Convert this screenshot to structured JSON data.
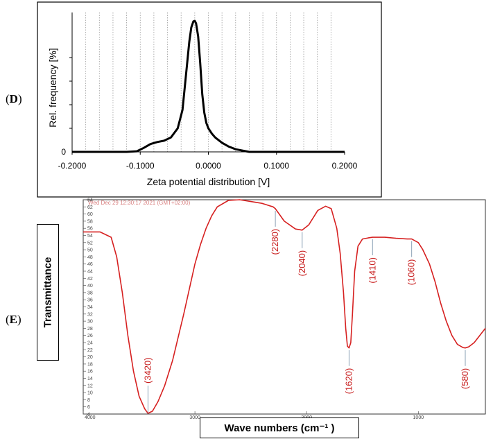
{
  "panels": {
    "d_label": "D",
    "e_label": "E"
  },
  "chart_data": [
    {
      "type": "line",
      "title": "",
      "xlabel": "Zeta potential distribution [V]",
      "ylabel": "Rel. frequency [%]",
      "xlim": [
        -0.2,
        0.2
      ],
      "ylim": [
        0,
        100
      ],
      "x_ticks": [
        "-0.2000",
        "-0.1000",
        "0.0000",
        "0.1000",
        "0.2000"
      ],
      "y_ticks": [
        "0"
      ],
      "grid": "vertical dashed",
      "series": [
        {
          "x": [
            -0.2,
            -0.15,
            -0.12,
            -0.105,
            -0.095,
            -0.085,
            -0.075,
            -0.065,
            -0.055,
            -0.045,
            -0.038,
            -0.033,
            -0.028,
            -0.025,
            -0.022,
            -0.02,
            -0.018,
            -0.015,
            -0.012,
            -0.009,
            -0.006,
            -0.003,
            0.0,
            0.005,
            0.01,
            0.02,
            0.03,
            0.04,
            0.05,
            0.06,
            0.1,
            0.15,
            0.2
          ],
          "y": [
            0,
            0,
            0,
            0.5,
            3,
            6,
            7.5,
            8.5,
            11,
            18,
            32,
            58,
            84,
            95,
            99.5,
            100,
            98,
            88,
            68,
            44,
            30,
            22,
            18,
            14,
            11,
            7,
            4,
            2,
            1,
            0,
            0,
            0,
            0
          ]
        }
      ]
    },
    {
      "type": "line",
      "title": "",
      "header_text": "Wed Dec 29 12:30:17 2021 (GMT+02:00)",
      "xlabel": "Wave numbers (cm⁻¹ )",
      "ylabel": "Transmittance",
      "xlim": [
        4000,
        400
      ],
      "ylim": [
        4,
        64
      ],
      "x_ticks": [
        "4000",
        "3000",
        "2000",
        "1000"
      ],
      "y_ticks": [
        "4",
        "6",
        "8",
        "10",
        "12",
        "14",
        "16",
        "18",
        "20",
        "22",
        "24",
        "26",
        "28",
        "30",
        "32",
        "34",
        "36",
        "38",
        "40",
        "42",
        "44",
        "46",
        "48",
        "50",
        "52",
        "54",
        "56",
        "58",
        "60",
        "62",
        "64"
      ],
      "annotations": [
        {
          "label": "(3420)",
          "x": 3420,
          "y": 4.2
        },
        {
          "label": "(2280)",
          "x": 2280,
          "y": 61.5
        },
        {
          "label": "(2040)",
          "x": 2040,
          "y": 55.5
        },
        {
          "label": "(1620)",
          "x": 1620,
          "y": 22.5
        },
        {
          "label": "(1410)",
          "x": 1410,
          "y": 53.5
        },
        {
          "label": "(1060)",
          "x": 1060,
          "y": 53.0
        },
        {
          "label": "(580)",
          "x": 580,
          "y": 22.5
        }
      ],
      "series": [
        {
          "x": [
            4000,
            3850,
            3750,
            3700,
            3650,
            3600,
            3550,
            3500,
            3450,
            3420,
            3380,
            3330,
            3270,
            3200,
            3100,
            3000,
            2950,
            2900,
            2850,
            2800,
            2700,
            2600,
            2500,
            2400,
            2300,
            2280,
            2200,
            2100,
            2040,
            1980,
            1900,
            1830,
            1780,
            1730,
            1700,
            1670,
            1650,
            1635,
            1620,
            1605,
            1590,
            1570,
            1540,
            1500,
            1450,
            1410,
            1300,
            1200,
            1100,
            1060,
            1000,
            960,
            900,
            850,
            800,
            750,
            700,
            650,
            600,
            580,
            550,
            500,
            450,
            400
          ],
          "y": [
            55,
            55,
            53.5,
            48,
            38,
            26,
            16,
            9,
            5.5,
            4.2,
            4.8,
            7.5,
            12,
            19,
            32,
            46,
            51.5,
            56,
            59.5,
            62,
            63.8,
            64,
            63.5,
            63,
            62,
            61.5,
            58,
            55.8,
            55.5,
            57,
            61,
            62.2,
            61.5,
            56,
            49,
            38,
            28,
            23,
            22.5,
            24,
            32,
            44,
            51,
            53,
            53.3,
            53.5,
            53.5,
            53.2,
            53,
            53,
            52,
            50,
            46,
            41,
            35,
            30,
            26,
            23.5,
            22.6,
            22.5,
            22.8,
            24,
            26,
            28
          ]
        }
      ]
    }
  ]
}
